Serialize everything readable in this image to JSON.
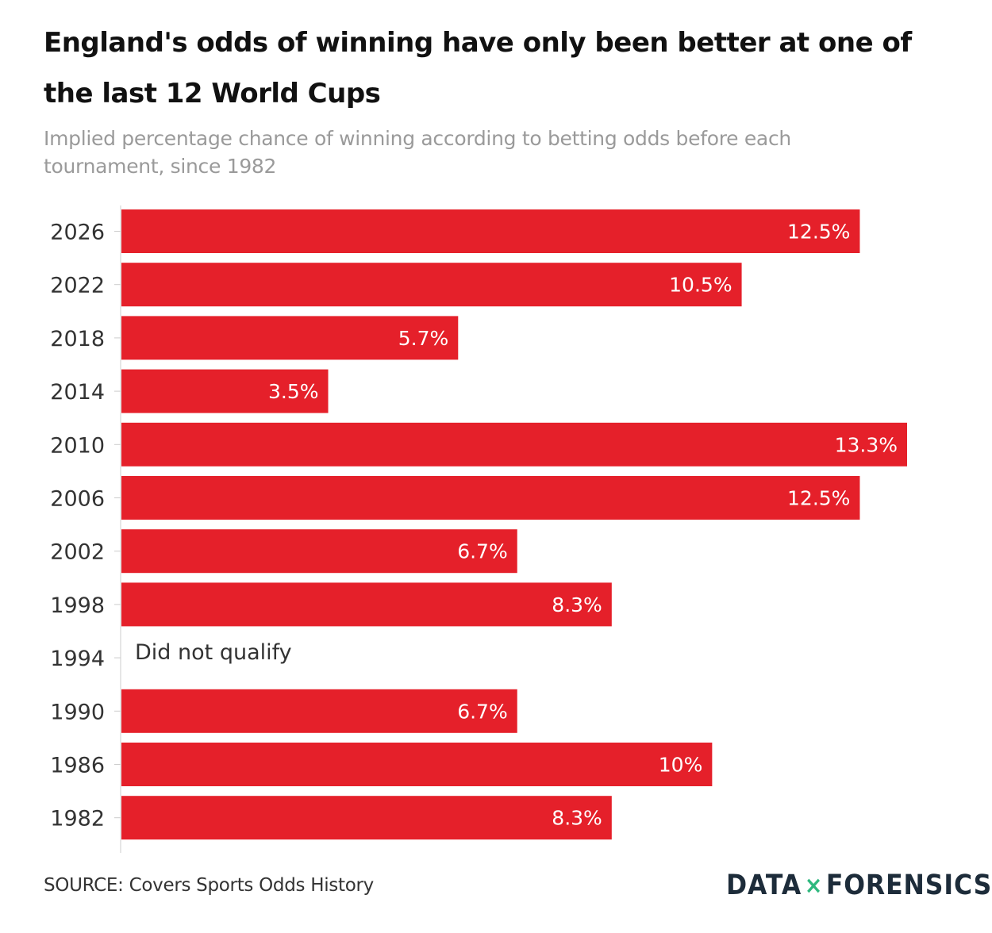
{
  "header": {
    "title": "England's odds of winning have only been better at one of the last 12 World Cups",
    "subtitle": "Implied percentage chance of winning according to betting odds before each tournament, since 1982"
  },
  "footer": {
    "source": "SOURCE: Covers Sports Odds History",
    "brand_left": "DATA",
    "brand_mark": "×",
    "brand_right": "FORENSICS"
  },
  "colors": {
    "bar": "#e5202a",
    "bar_label": "#ffffff",
    "axis": "#cccccc"
  },
  "chart_data": {
    "type": "bar",
    "orientation": "horizontal",
    "categories": [
      "2026",
      "2022",
      "2018",
      "2014",
      "2010",
      "2006",
      "2002",
      "1998",
      "1994",
      "1990",
      "1986",
      "1982"
    ],
    "values": [
      12.5,
      10.5,
      5.7,
      3.5,
      13.3,
      12.5,
      6.7,
      8.3,
      null,
      6.7,
      10,
      8.3
    ],
    "value_labels": [
      "12.5%",
      "10.5%",
      "5.7%",
      "3.5%",
      "13.3%",
      "12.5%",
      "6.7%",
      "8.3%",
      "Did not qualify",
      "6.7%",
      "10%",
      "8.3%"
    ],
    "xlim": [
      0,
      13.3
    ],
    "unit": "%",
    "grid": false,
    "legend": "none"
  }
}
